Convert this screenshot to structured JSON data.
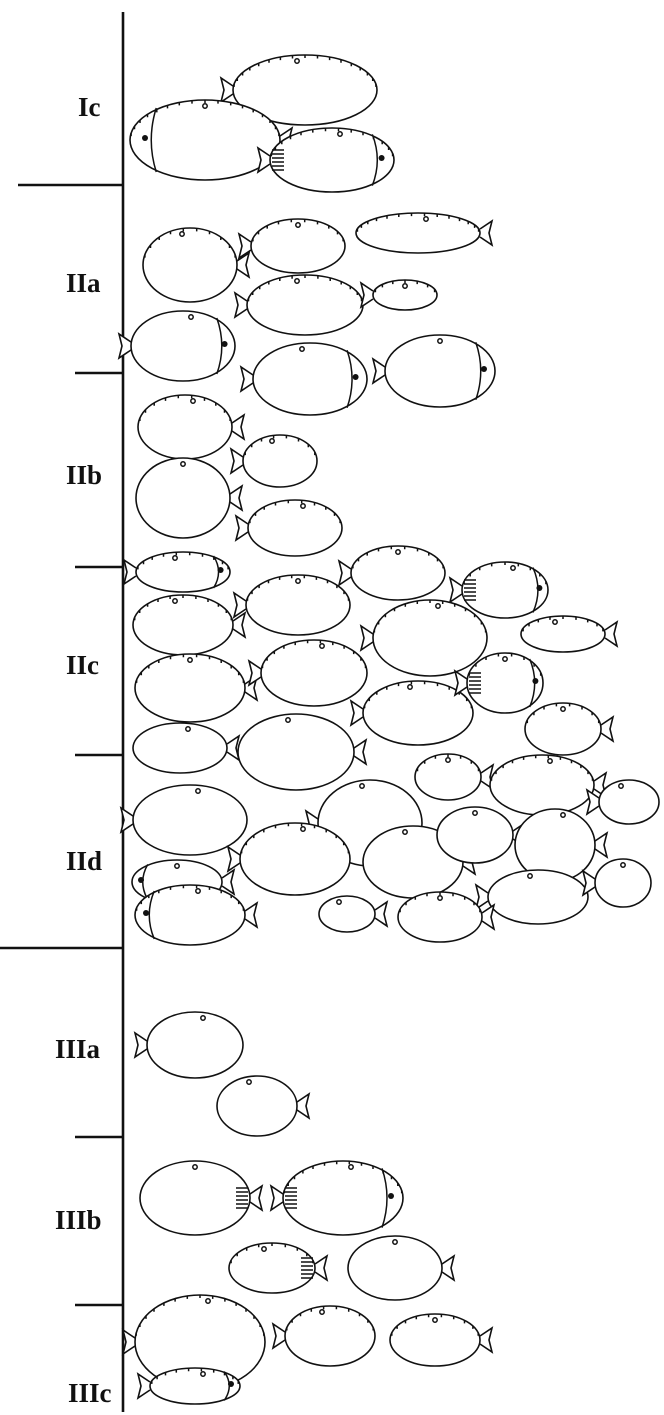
{
  "groups": [
    {
      "label": "Ic"
    },
    {
      "label": "IIa"
    },
    {
      "label": "IIb"
    },
    {
      "label": "IIc"
    },
    {
      "label": "IId"
    },
    {
      "label": "IIIa"
    },
    {
      "label": "IIIb"
    },
    {
      "label": "IIIc"
    }
  ],
  "colors": {
    "ink": "#111111",
    "paper": "#ffffff"
  }
}
